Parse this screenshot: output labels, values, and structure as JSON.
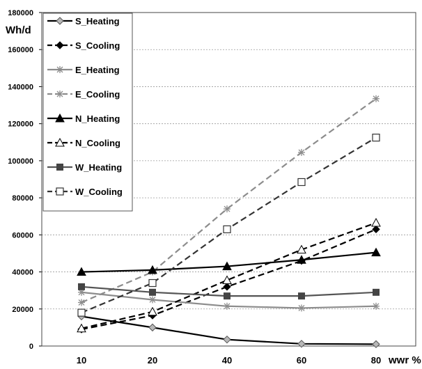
{
  "chart_data": {
    "type": "line",
    "ylabel": "Wh/d",
    "xlabel": "wwr %",
    "categories": [
      "10",
      "20",
      "40",
      "60",
      "80"
    ],
    "ylim": [
      0,
      180000
    ],
    "yticks": [
      0,
      20000,
      40000,
      60000,
      80000,
      100000,
      120000,
      140000,
      160000,
      180000
    ],
    "grid": true,
    "legend_position": "top-left",
    "series": [
      {
        "name": "S_Heating",
        "values": [
          16000,
          10000,
          3500,
          1200,
          1000
        ],
        "color": "#000000",
        "dash": "solid",
        "marker": "diamond-open"
      },
      {
        "name": "S_Cooling",
        "values": [
          9000,
          16500,
          32000,
          46000,
          63000
        ],
        "color": "#000000",
        "dash": "dashed",
        "marker": "diamond-filled"
      },
      {
        "name": "E_Heating",
        "values": [
          29000,
          25000,
          21500,
          20500,
          21500
        ],
        "color": "#8c8c8c",
        "dash": "solid",
        "marker": "star"
      },
      {
        "name": "E_Cooling",
        "values": [
          23500,
          40000,
          74000,
          104500,
          133500
        ],
        "color": "#8c8c8c",
        "dash": "dashed",
        "marker": "star"
      },
      {
        "name": "N_Heating",
        "values": [
          40000,
          41000,
          43000,
          46500,
          50500
        ],
        "color": "#000000",
        "dash": "solid",
        "marker": "triangle-filled"
      },
      {
        "name": "N_Cooling",
        "values": [
          9500,
          18500,
          35500,
          52000,
          66500
        ],
        "color": "#000000",
        "dash": "dashed",
        "marker": "triangle-open"
      },
      {
        "name": "W_Heating",
        "values": [
          32000,
          29000,
          27000,
          27000,
          29000
        ],
        "color": "#555555",
        "dash": "solid",
        "marker": "square-filled"
      },
      {
        "name": "W_Cooling",
        "values": [
          18000,
          34000,
          63000,
          88500,
          112500
        ],
        "color": "#333333",
        "dash": "dashed",
        "marker": "square-open"
      }
    ]
  }
}
